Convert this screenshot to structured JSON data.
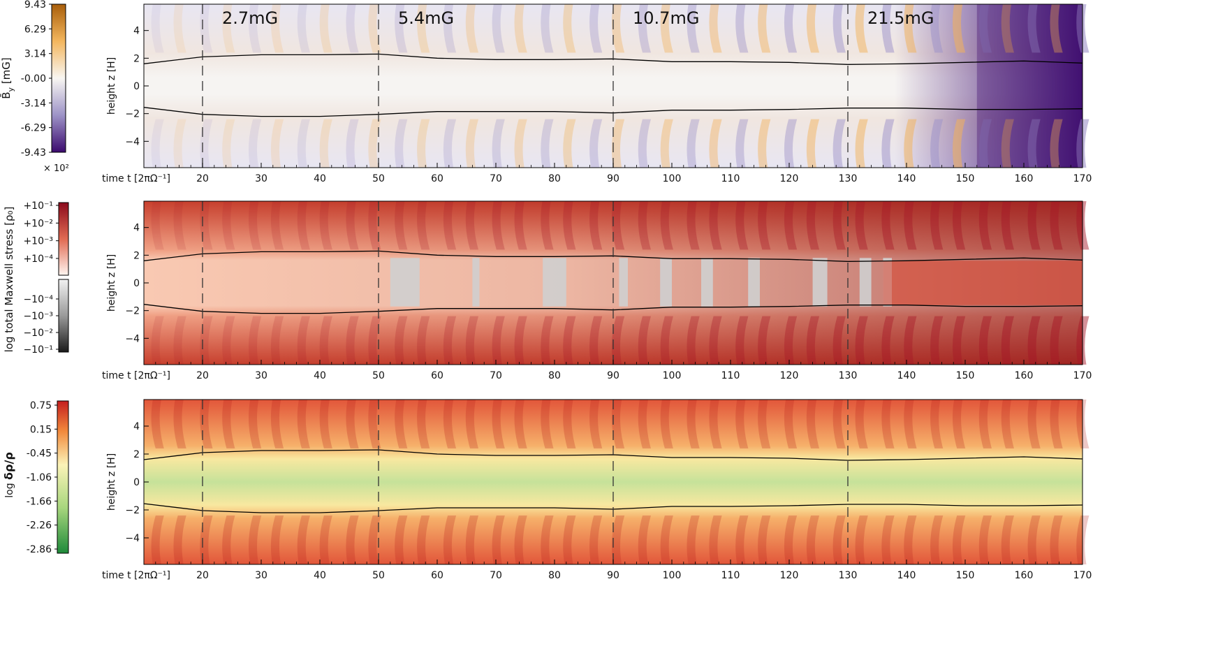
{
  "chart_data": [
    {
      "type": "heatmap",
      "panel": "top",
      "quantity": "mean toroidal magnetic field",
      "colorbar": {
        "label_main": "B̄",
        "label_sub": "y",
        "label_unit": "[mG]",
        "ticks": [
          "9.43",
          "6.29",
          "3.14",
          "-0.00",
          "-3.14",
          "-6.29",
          "-9.43"
        ],
        "multiplier": "× 10²",
        "range": [
          -943,
          943
        ],
        "colors": {
          "high": "#a85e0a",
          "mid": "#f8f6f2",
          "low": "#3b0a6e"
        }
      },
      "xlabel": "time t  [2πΩ⁻¹]",
      "ylabel": "height z [H]",
      "xlim": [
        10,
        170
      ],
      "ylim": [
        -5.9,
        5.9
      ],
      "xticks": [
        20,
        30,
        40,
        50,
        60,
        70,
        80,
        90,
        100,
        110,
        120,
        130,
        140,
        150,
        160,
        170
      ],
      "yticks": [
        -4,
        -2,
        0,
        2,
        4
      ],
      "segment_labels": [
        "2.7mG",
        "5.4mG",
        "10.7mG",
        "21.5mG"
      ],
      "dashed_lines_x": [
        20,
        50,
        90,
        130
      ],
      "boundary_upper": [
        [
          10,
          1.6
        ],
        [
          20,
          2.1
        ],
        [
          30,
          2.25
        ],
        [
          40,
          2.25
        ],
        [
          50,
          2.3
        ],
        [
          60,
          2.0
        ],
        [
          70,
          1.9
        ],
        [
          80,
          1.9
        ],
        [
          90,
          1.95
        ],
        [
          100,
          1.75
        ],
        [
          110,
          1.75
        ],
        [
          120,
          1.7
        ],
        [
          130,
          1.55
        ],
        [
          140,
          1.6
        ],
        [
          150,
          1.7
        ],
        [
          160,
          1.8
        ],
        [
          170,
          1.65
        ]
      ],
      "boundary_lower": [
        [
          10,
          -1.55
        ],
        [
          20,
          -2.05
        ],
        [
          30,
          -2.2
        ],
        [
          40,
          -2.2
        ],
        [
          50,
          -2.05
        ],
        [
          60,
          -1.85
        ],
        [
          70,
          -1.85
        ],
        [
          80,
          -1.85
        ],
        [
          90,
          -1.95
        ],
        [
          100,
          -1.75
        ],
        [
          110,
          -1.75
        ],
        [
          120,
          -1.7
        ],
        [
          130,
          -1.6
        ],
        [
          140,
          -1.6
        ],
        [
          150,
          -1.7
        ],
        [
          160,
          -1.7
        ],
        [
          170,
          -1.65
        ]
      ]
    },
    {
      "type": "heatmap",
      "panel": "middle",
      "quantity": "total Maxwell stress",
      "colorbar": {
        "label_prefix": "log",
        "label_main": "total Maxwell stress",
        "label_unit": "[ρ₀]",
        "ticks": [
          "+10⁻¹",
          "+10⁻²",
          "+10⁻³",
          "+10⁻⁴",
          "−10⁻⁴",
          "−10⁻³",
          "−10⁻²",
          "−10⁻¹"
        ],
        "colors": {
          "pos_high": "#8b0a1c",
          "pos_low": "#fbe6dc",
          "neg_low": "#eeeeee",
          "neg_high": "#1a1a1a"
        }
      },
      "xlabel": "time t  [2πΩ⁻¹]",
      "ylabel": "height z [H]",
      "xlim": [
        10,
        170
      ],
      "ylim": [
        -5.9,
        5.9
      ],
      "xticks": [
        20,
        30,
        40,
        50,
        60,
        70,
        80,
        90,
        100,
        110,
        120,
        130,
        140,
        150,
        160,
        170
      ],
      "yticks": [
        -4,
        -2,
        0,
        2,
        4
      ],
      "dashed_lines_x": [
        20,
        50,
        90,
        130
      ],
      "boundary_upper": [
        [
          10,
          1.6
        ],
        [
          20,
          2.1
        ],
        [
          30,
          2.25
        ],
        [
          40,
          2.25
        ],
        [
          50,
          2.3
        ],
        [
          60,
          2.0
        ],
        [
          70,
          1.9
        ],
        [
          80,
          1.9
        ],
        [
          90,
          1.95
        ],
        [
          100,
          1.75
        ],
        [
          110,
          1.75
        ],
        [
          120,
          1.7
        ],
        [
          130,
          1.55
        ],
        [
          140,
          1.6
        ],
        [
          150,
          1.7
        ],
        [
          160,
          1.8
        ],
        [
          170,
          1.65
        ]
      ],
      "boundary_lower": [
        [
          10,
          -1.55
        ],
        [
          20,
          -2.05
        ],
        [
          30,
          -2.2
        ],
        [
          40,
          -2.2
        ],
        [
          50,
          -2.05
        ],
        [
          60,
          -1.85
        ],
        [
          70,
          -1.85
        ],
        [
          80,
          -1.85
        ],
        [
          90,
          -1.95
        ],
        [
          100,
          -1.75
        ],
        [
          110,
          -1.75
        ],
        [
          120,
          -1.7
        ],
        [
          130,
          -1.6
        ],
        [
          140,
          -1.6
        ],
        [
          150,
          -1.7
        ],
        [
          160,
          -1.7
        ],
        [
          170,
          -1.65
        ]
      ]
    },
    {
      "type": "heatmap",
      "panel": "bottom",
      "quantity": "relative density fluctuation",
      "colorbar": {
        "label_prefix": "log",
        "label_main": "δρ/ρ",
        "ticks": [
          "0.75",
          "0.15",
          "-0.45",
          "-1.06",
          "-1.66",
          "-2.26",
          "-2.86"
        ],
        "range": [
          -2.86,
          0.75
        ],
        "colors": {
          "high": "#c41e1e",
          "mid": "#fbf3b8",
          "low": "#1e8a3a"
        }
      },
      "xlabel": "time t  [2πΩ⁻¹]",
      "ylabel": "height z [H]",
      "xlim": [
        10,
        170
      ],
      "ylim": [
        -5.9,
        5.9
      ],
      "xticks": [
        20,
        30,
        40,
        50,
        60,
        70,
        80,
        90,
        100,
        110,
        120,
        130,
        140,
        150,
        160,
        170
      ],
      "yticks": [
        -4,
        -2,
        0,
        2,
        4
      ],
      "dashed_lines_x": [
        20,
        50,
        90,
        130
      ],
      "boundary_upper": [
        [
          10,
          1.6
        ],
        [
          20,
          2.1
        ],
        [
          30,
          2.25
        ],
        [
          40,
          2.25
        ],
        [
          50,
          2.3
        ],
        [
          60,
          2.0
        ],
        [
          70,
          1.9
        ],
        [
          80,
          1.9
        ],
        [
          90,
          1.95
        ],
        [
          100,
          1.75
        ],
        [
          110,
          1.75
        ],
        [
          120,
          1.7
        ],
        [
          130,
          1.55
        ],
        [
          140,
          1.6
        ],
        [
          150,
          1.7
        ],
        [
          160,
          1.8
        ],
        [
          170,
          1.65
        ]
      ],
      "boundary_lower": [
        [
          10,
          -1.55
        ],
        [
          20,
          -2.05
        ],
        [
          30,
          -2.2
        ],
        [
          40,
          -2.2
        ],
        [
          50,
          -2.05
        ],
        [
          60,
          -1.85
        ],
        [
          70,
          -1.85
        ],
        [
          80,
          -1.85
        ],
        [
          90,
          -1.95
        ],
        [
          100,
          -1.75
        ],
        [
          110,
          -1.75
        ],
        [
          120,
          -1.7
        ],
        [
          130,
          -1.6
        ],
        [
          140,
          -1.6
        ],
        [
          150,
          -1.7
        ],
        [
          160,
          -1.7
        ],
        [
          170,
          -1.65
        ]
      ]
    }
  ]
}
